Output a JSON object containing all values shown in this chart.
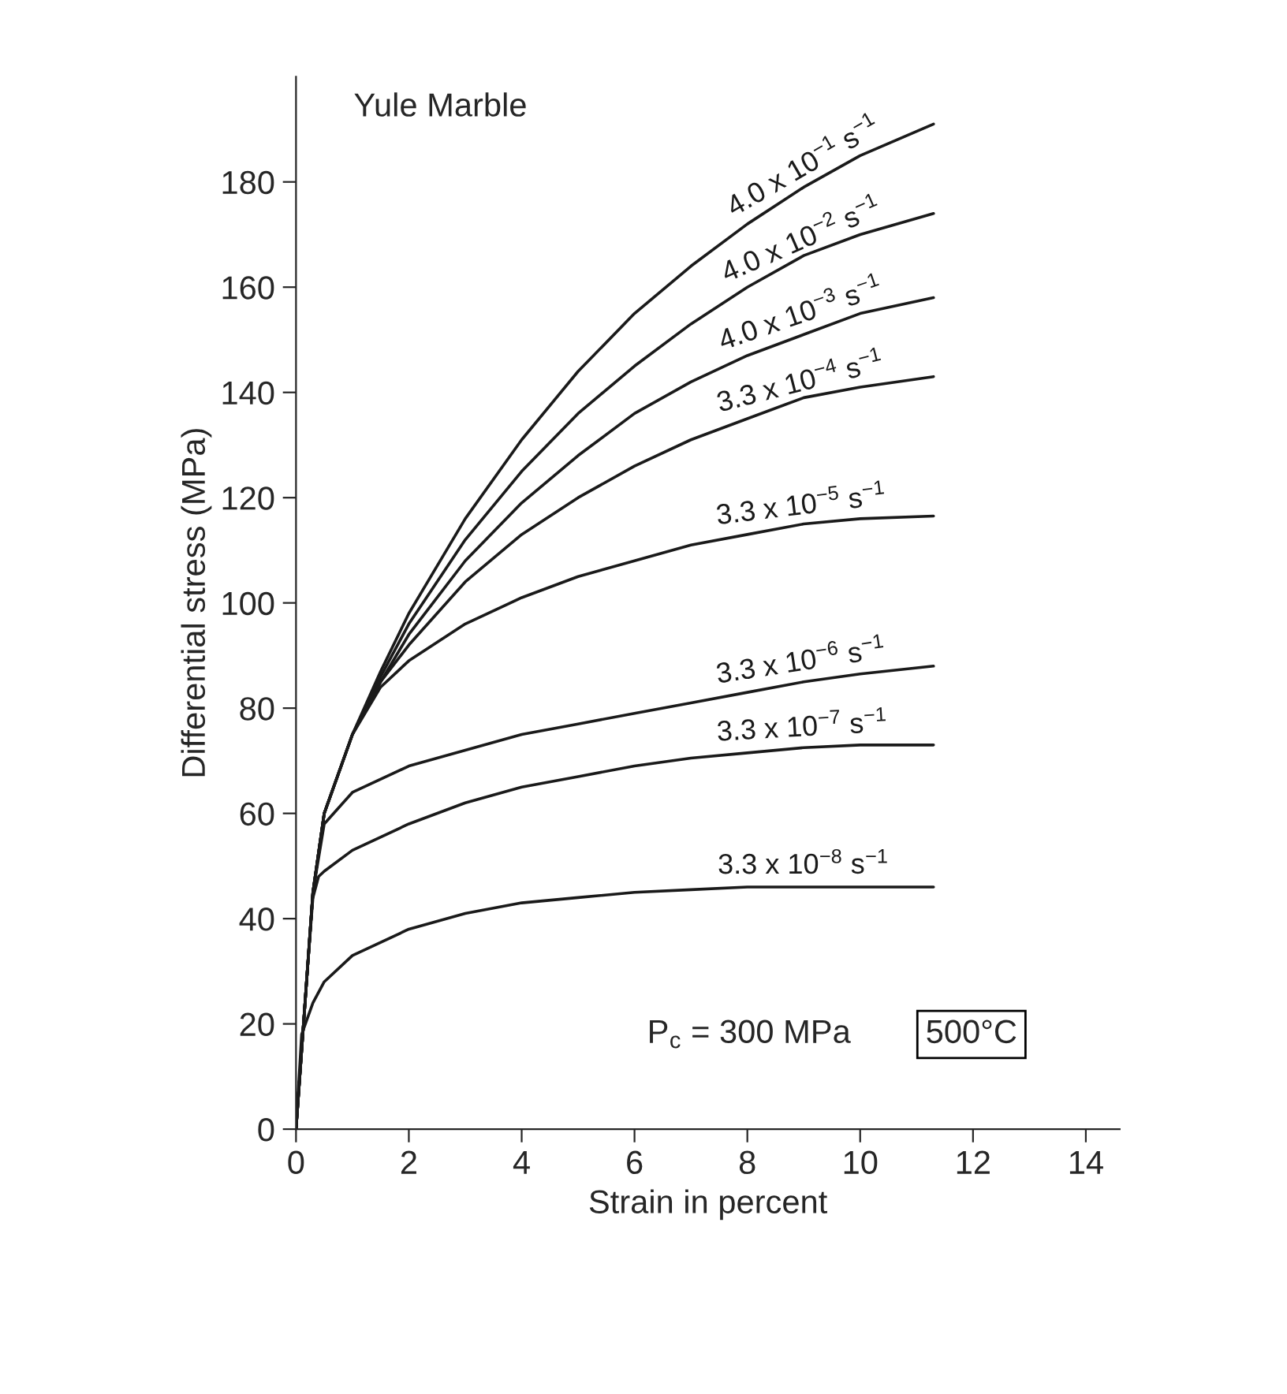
{
  "chart_data": {
    "type": "line",
    "title": "Yule Marble",
    "xlabel": "Strain in percent",
    "ylabel": "Differential stress (MPa)",
    "xlim": [
      0,
      14.6
    ],
    "ylim": [
      0,
      200
    ],
    "xticks": [
      0,
      2,
      4,
      6,
      8,
      10,
      12,
      14
    ],
    "yticks": [
      0,
      20,
      40,
      60,
      80,
      100,
      120,
      140,
      160,
      180
    ],
    "grid": false,
    "legend": false,
    "marker": "none",
    "line_style": "solid",
    "annotations": [
      "P$_{c}$ = 300 MPa",
      "500°C"
    ],
    "series": [
      {
        "name": "4.0 x 10$^{−1}$ s$^{−1}$",
        "color": "#1a1a1a",
        "x": [
          0,
          0.1,
          0.2,
          0.3,
          0.5,
          1,
          1.5,
          2,
          3,
          4,
          5,
          6,
          7,
          8,
          9,
          10,
          11.3
        ],
        "values": [
          0,
          15,
          30,
          45,
          60,
          75,
          87,
          98,
          116,
          131,
          144,
          155,
          164,
          172,
          179,
          185,
          191
        ]
      },
      {
        "name": "4.0 x 10$^{−2}$ s$^{−1}$",
        "color": "#1a1a1a",
        "x": [
          0,
          0.1,
          0.2,
          0.3,
          0.5,
          1,
          1.5,
          2,
          3,
          4,
          5,
          6,
          7,
          8,
          9,
          10,
          11.3
        ],
        "values": [
          0,
          15,
          30,
          45,
          60,
          75,
          86,
          96,
          112,
          125,
          136,
          145,
          153,
          160,
          166,
          170,
          174
        ]
      },
      {
        "name": "4.0 x 10$^{−3}$ s$^{−1}$",
        "color": "#1a1a1a",
        "x": [
          0,
          0.1,
          0.2,
          0.3,
          0.5,
          1,
          1.5,
          2,
          3,
          4,
          5,
          6,
          7,
          8,
          9,
          10,
          11.3
        ],
        "values": [
          0,
          15,
          30,
          45,
          60,
          75,
          85,
          94,
          108,
          119,
          128,
          136,
          142,
          147,
          151,
          155,
          158
        ]
      },
      {
        "name": "3.3 x 10$^{−4}$ s$^{−1}$",
        "color": "#1a1a1a",
        "x": [
          0,
          0.1,
          0.2,
          0.3,
          0.5,
          1,
          1.5,
          2,
          3,
          4,
          5,
          6,
          7,
          8,
          9,
          10,
          11.3
        ],
        "values": [
          0,
          15,
          30,
          45,
          60,
          75,
          85,
          92,
          104,
          113,
          120,
          126,
          131,
          135,
          139,
          141,
          143
        ]
      },
      {
        "name": "3.3 x 10$^{−5}$ s$^{−1}$",
        "color": "#1a1a1a",
        "x": [
          0,
          0.1,
          0.2,
          0.3,
          0.5,
          1,
          1.5,
          2,
          3,
          4,
          5,
          6,
          7,
          8,
          9,
          10,
          11.3
        ],
        "values": [
          0,
          15,
          30,
          45,
          60,
          75,
          84,
          89,
          96,
          101,
          105,
          108,
          111,
          113,
          115,
          116,
          116.5
        ]
      },
      {
        "name": "3.3 x 10$^{−6}$ s$^{−1}$",
        "color": "#1a1a1a",
        "x": [
          0,
          0.1,
          0.2,
          0.3,
          0.5,
          1,
          2,
          3,
          4,
          5,
          6,
          7,
          8,
          9,
          10,
          11.3
        ],
        "values": [
          0,
          15,
          30,
          45,
          58,
          64,
          69,
          72,
          75,
          77,
          79,
          81,
          83,
          85,
          86.5,
          88
        ]
      },
      {
        "name": "3.3 x 10$^{−7}$ s$^{−1}$",
        "color": "#1a1a1a",
        "x": [
          0,
          0.1,
          0.2,
          0.3,
          0.4,
          0.5,
          1,
          2,
          3,
          4,
          5,
          6,
          7,
          8,
          9,
          10,
          11.3
        ],
        "values": [
          0,
          15,
          30,
          44,
          48,
          49,
          53,
          58,
          62,
          65,
          67,
          69,
          70.5,
          71.5,
          72.5,
          73,
          73
        ]
      },
      {
        "name": "3.3 x 10$^{−8}$ s$^{−1}$",
        "color": "#1a1a1a",
        "x": [
          0,
          0.1,
          0.3,
          0.5,
          1,
          2,
          3,
          4,
          5,
          6,
          7,
          8,
          9,
          10,
          11.3
        ],
        "values": [
          0,
          18,
          24,
          28,
          33,
          38,
          41,
          43,
          44,
          45,
          45.5,
          46,
          46,
          46,
          46
        ]
      }
    ]
  }
}
